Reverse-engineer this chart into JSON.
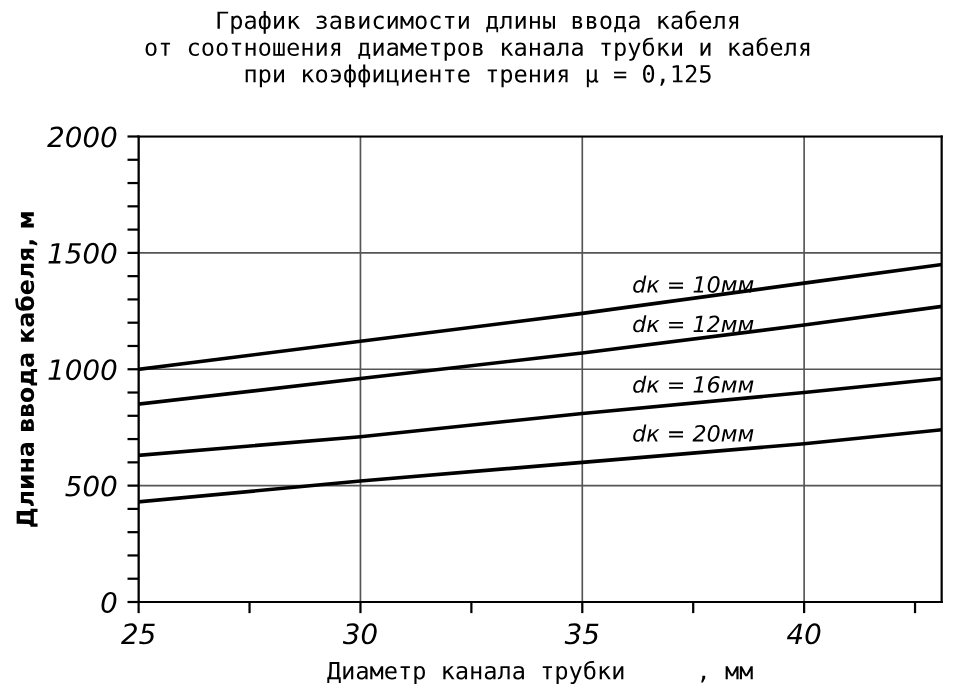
{
  "chart_data": {
    "type": "line",
    "title": "График зависимости длины ввода кабеля\nот соотношения диаметров канала трубки и кабеля\nпри коэффициенте трения μ = 0,125",
    "xlabel": "Диаметр канала трубки     , мм",
    "ylabel": "Длина ввода кабеля, м",
    "x": [
      25,
      30,
      35,
      40,
      43.1
    ],
    "series": [
      {
        "name": "dк = 10мм",
        "color": "#000000",
        "values": [
          1000,
          1120,
          1240,
          1370,
          1450
        ]
      },
      {
        "name": "dк = 12мм",
        "color": "#000000",
        "values": [
          850,
          960,
          1070,
          1190,
          1270
        ]
      },
      {
        "name": "dк = 16мм",
        "color": "#000000",
        "values": [
          630,
          710,
          810,
          900,
          960
        ]
      },
      {
        "name": "dк = 20мм",
        "color": "#000000",
        "values": [
          430,
          520,
          600,
          680,
          740
        ]
      }
    ],
    "xlim": [
      25,
      43.1
    ],
    "ylim": [
      0,
      2000
    ],
    "xticks": [
      25,
      {
        "value": 27.5,
        "label": null
      },
      30,
      {
        "value": 32.5,
        "label": null
      },
      35,
      {
        "value": 37.5,
        "label": null
      },
      40,
      {
        "value": 42.5,
        "label": null
      }
    ],
    "yticks": [
      0,
      {
        "value": 100,
        "label": null
      },
      {
        "value": 200,
        "label": null
      },
      {
        "value": 300,
        "label": null
      },
      {
        "value": 400,
        "label": null
      },
      500,
      {
        "value": 600,
        "label": null
      },
      {
        "value": 700,
        "label": null
      },
      {
        "value": 800,
        "label": null
      },
      {
        "value": 900,
        "label": null
      },
      1000,
      {
        "value": 1100,
        "label": null
      },
      {
        "value": 1200,
        "label": null
      },
      {
        "value": 1300,
        "label": null
      },
      {
        "value": 1400,
        "label": null
      },
      1500,
      {
        "value": 1600,
        "label": null
      },
      {
        "value": 1700,
        "label": null
      },
      {
        "value": 1800,
        "label": null
      },
      {
        "value": 1900,
        "label": null
      },
      2000
    ],
    "grid": true,
    "marker": "none",
    "line_style": "solid",
    "legend": false
  }
}
